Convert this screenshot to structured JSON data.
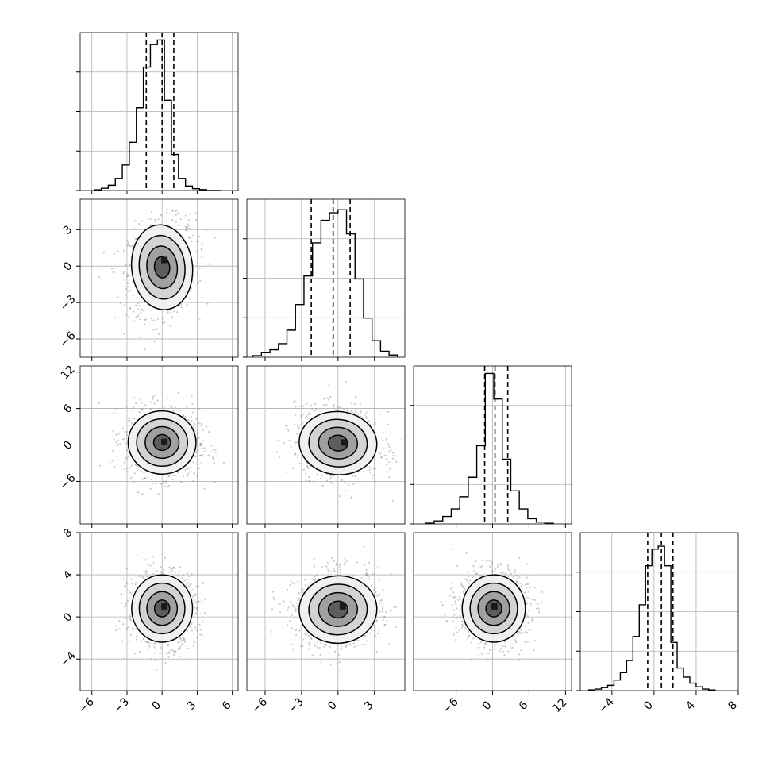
{
  "chart_data": {
    "type": "corner",
    "n_params": 4,
    "param_ranges": [
      [
        -7.0,
        6.5
      ],
      [
        -7.5,
        5.5
      ],
      [
        -13.0,
        13.0
      ],
      [
        -7.0,
        8.0
      ]
    ],
    "param_ticks": [
      [
        -6,
        -3,
        0,
        3,
        6
      ],
      [
        -6,
        -3,
        0,
        3
      ],
      [
        -6,
        0,
        6,
        12
      ],
      [
        -4,
        0,
        4,
        8
      ]
    ],
    "tick_labels": [
      [
        "−6",
        "−3",
        "0",
        "3",
        "6"
      ],
      [
        "−6",
        "−3",
        "0",
        "3"
      ],
      [
        "−6",
        "0",
        "6",
        "12"
      ],
      [
        "−4",
        "0",
        "4",
        "8"
      ]
    ],
    "row_ticks": [
      [],
      [
        3,
        0,
        -3,
        -6
      ],
      [
        12,
        6,
        0,
        -6
      ],
      [
        8,
        4,
        0,
        -4
      ]
    ],
    "row_tick_labels": [
      [],
      [
        "3",
        "0",
        "−3",
        "−6"
      ],
      [
        "12",
        "6",
        "0",
        "−6"
      ],
      [
        "8",
        "4",
        "0",
        "−4"
      ]
    ],
    "quantiles": [
      [
        -1.35,
        0.0,
        1.0
      ],
      [
        -2.2,
        -0.4,
        1.0
      ],
      [
        -1.3,
        0.4,
        2.5
      ],
      [
        -0.6,
        0.7,
        1.8
      ]
    ],
    "histograms": [
      {
        "bins": [
          -5.8,
          -5.2,
          -4.6,
          -4.0,
          -3.4,
          -2.8,
          -2.2,
          -1.6,
          -1.0,
          -0.4,
          0.2,
          0.8,
          1.4,
          2.0,
          2.6,
          3.2,
          3.8,
          4.4,
          5.0
        ],
        "counts": [
          0.005,
          0.015,
          0.035,
          0.08,
          0.17,
          0.32,
          0.55,
          0.82,
          0.97,
          1.0,
          0.6,
          0.24,
          0.08,
          0.03,
          0.012,
          0.006,
          0.0,
          0.0
        ]
      },
      {
        "bins": [
          -7.0,
          -6.3,
          -5.6,
          -4.9,
          -4.2,
          -3.5,
          -2.8,
          -2.1,
          -1.4,
          -0.7,
          0.0,
          0.7,
          1.4,
          2.1,
          2.8,
          3.5,
          4.2,
          4.9
        ],
        "counts": [
          0.01,
          0.03,
          0.05,
          0.09,
          0.18,
          0.35,
          0.54,
          0.76,
          0.91,
          0.96,
          0.98,
          0.82,
          0.52,
          0.26,
          0.11,
          0.04,
          0.015
        ]
      },
      {
        "bins": [
          -11.0,
          -9.6,
          -8.2,
          -6.8,
          -5.4,
          -4.0,
          -2.6,
          -1.2,
          0.2,
          1.6,
          3.0,
          4.4,
          5.8,
          7.2,
          8.6,
          10.0
        ],
        "counts": [
          0.005,
          0.02,
          0.05,
          0.1,
          0.18,
          0.31,
          0.52,
          1.0,
          0.83,
          0.43,
          0.22,
          0.1,
          0.035,
          0.012,
          0.004
        ]
      },
      {
        "bins": [
          -6.2,
          -5.6,
          -5.0,
          -4.4,
          -3.8,
          -3.2,
          -2.6,
          -2.0,
          -1.4,
          -0.8,
          -0.2,
          0.4,
          1.0,
          1.6,
          2.2,
          2.8,
          3.4,
          4.0,
          4.6,
          5.2,
          5.8
        ],
        "counts": [
          0.005,
          0.01,
          0.02,
          0.035,
          0.07,
          0.12,
          0.2,
          0.36,
          0.57,
          0.83,
          0.94,
          0.96,
          0.83,
          0.32,
          0.15,
          0.09,
          0.05,
          0.025,
          0.01,
          0.004
        ]
      }
    ],
    "covariances": {
      "1,0": {
        "center": [
          0.0,
          -0.1
        ],
        "sx": 1.3,
        "sy": 1.75,
        "rho": 0.15,
        "peak": [
          0.2,
          0.5
        ]
      },
      "2,0": {
        "center": [
          0.0,
          0.4
        ],
        "sx": 1.45,
        "sy": 2.6,
        "rho": -0.05,
        "peak": [
          0.2,
          0.5
        ]
      },
      "2,1": {
        "center": [
          0.0,
          0.3
        ],
        "sx": 1.6,
        "sy": 2.6,
        "rho": -0.12,
        "peak": [
          0.5,
          0.4
        ]
      },
      "3,0": {
        "center": [
          0.0,
          0.8
        ],
        "sx": 1.3,
        "sy": 1.6,
        "rho": 0.0,
        "peak": [
          0.2,
          1.0
        ]
      },
      "3,1": {
        "center": [
          0.0,
          0.7
        ],
        "sx": 1.6,
        "sy": 1.6,
        "rho": 0.08,
        "peak": [
          0.4,
          1.0
        ]
      },
      "3,2": {
        "center": [
          0.2,
          0.8
        ],
        "sx": 2.6,
        "sy": 1.6,
        "rho": 0.0,
        "peak": [
          0.3,
          1.0
        ]
      }
    },
    "contour_levels": [
      0.5,
      1.0,
      1.5,
      2.0
    ],
    "grid": true,
    "colors": {
      "contour": "#000000",
      "scatter": "#8a8a8a",
      "grid": "#b0b0b0",
      "fill_dark": "#1a1a1a",
      "fill_light": "#e6e6e6"
    }
  }
}
